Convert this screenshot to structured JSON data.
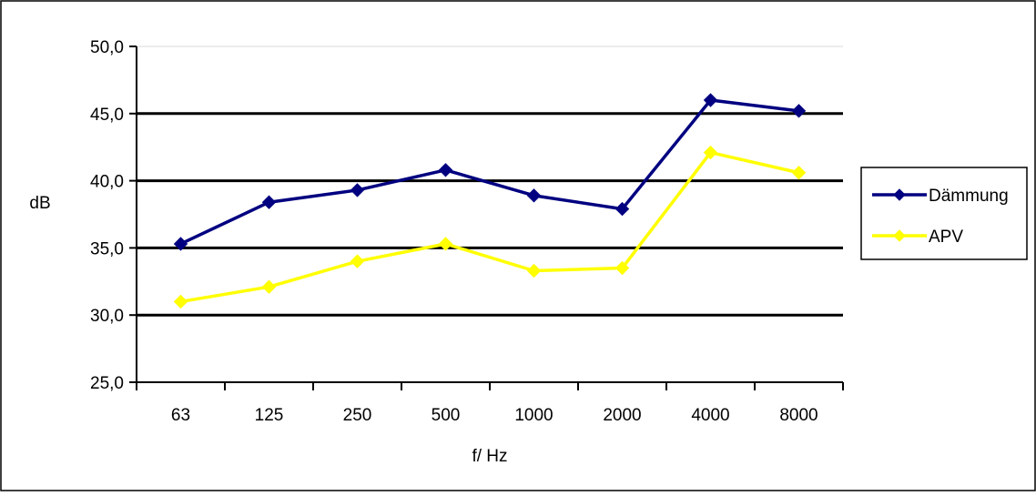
{
  "chart_data": {
    "type": "line",
    "categories": [
      "63",
      "125",
      "250",
      "500",
      "1000",
      "2000",
      "4000",
      "8000"
    ],
    "series": [
      {
        "name": "Dämmung",
        "color": "#000080",
        "marker": "diamond",
        "values": [
          35.3,
          38.4,
          39.3,
          40.8,
          38.9,
          37.9,
          46.0,
          45.2
        ]
      },
      {
        "name": "APV",
        "color": "#ffff00",
        "marker": "diamond",
        "values": [
          31.0,
          32.1,
          34.0,
          35.3,
          33.3,
          33.5,
          42.1,
          40.6
        ]
      }
    ],
    "xlabel": "f/ Hz",
    "ylabel": "dB",
    "ylim": [
      25,
      50
    ],
    "yticks": [
      "25,0",
      "30,0",
      "35,0",
      "40,0",
      "45,0",
      "50,0"
    ],
    "grid": true,
    "legend_position": "right"
  }
}
